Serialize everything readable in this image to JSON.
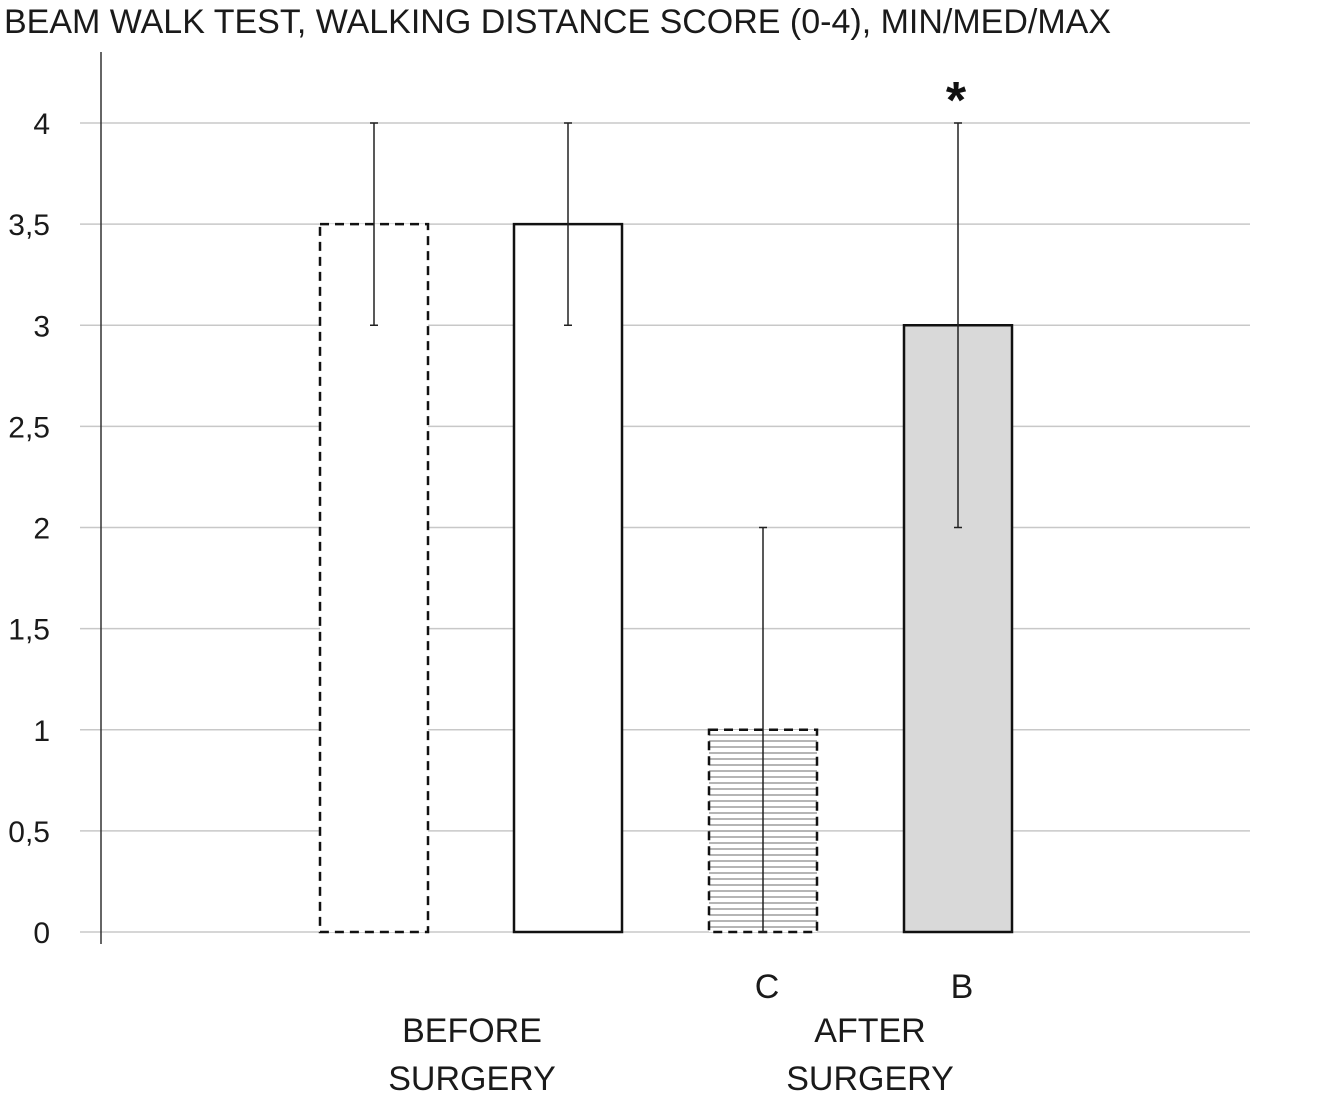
{
  "chart_data": {
    "type": "bar",
    "title": "BEAM WALK TEST, WALKING DISTANCE SCORE (0-4), MIN/MED/MAX",
    "ylim": [
      0,
      4
    ],
    "yticks": [
      "0",
      "0,5",
      "1",
      "1,5",
      "2",
      "2,5",
      "3",
      "3,5",
      "4"
    ],
    "grid": true,
    "bars": [
      {
        "group": "BEFORE SURGERY",
        "label": "",
        "median": 3.5,
        "min": 3,
        "max": 4,
        "style": "dashed-outline",
        "fill": "#ffffff"
      },
      {
        "group": "BEFORE SURGERY",
        "label": "",
        "median": 3.5,
        "min": 3,
        "max": 4,
        "style": "solid-outline",
        "fill": "#ffffff"
      },
      {
        "group": "AFTER SURGERY",
        "label": "C",
        "median": 1,
        "min": 0,
        "max": 2,
        "style": "dashed-outline-horizontal-stripes",
        "fill": "#ffffff"
      },
      {
        "group": "AFTER SURGERY",
        "label": "B",
        "median": 3,
        "min": 2,
        "max": 4,
        "style": "solid-outline",
        "fill": "#d9d9d9",
        "annotation": "*"
      }
    ],
    "groups": [
      {
        "line1": "BEFORE",
        "line2": "SURGERY"
      },
      {
        "line1": "AFTER",
        "line2": "SURGERY"
      }
    ]
  },
  "colors": {
    "grid": "#c8c8c8",
    "bar_outline": "#111111",
    "bar_b_fill": "#d9d9d9",
    "stripe": "#b5b5b5"
  }
}
